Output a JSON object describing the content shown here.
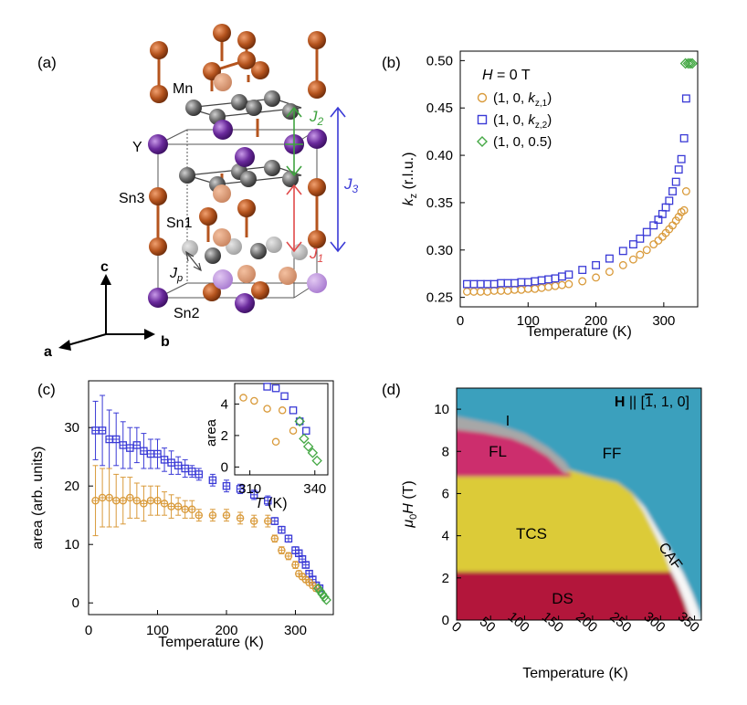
{
  "panels": {
    "a": {
      "label": "(a)",
      "atoms": {
        "mn": "Mn",
        "y": "Y",
        "sn3": "Sn3",
        "sn1": "Sn1",
        "sn2": "Sn2"
      },
      "couplings": {
        "j2": "J",
        "j2_sub": "2",
        "j1": "J",
        "j1_sub": "1",
        "j3": "J",
        "j3_sub": "3",
        "jp": "J",
        "jp_sub": "p"
      },
      "axes": {
        "a": "a",
        "b": "b",
        "c": "c"
      },
      "colors": {
        "mn": "#b5541e",
        "y": "#6a2a9c",
        "sn": "#6b6b6b",
        "j1": "#e04a4a",
        "j2": "#3fa33f",
        "j3": "#3a3ad6"
      }
    },
    "b": {
      "label": "(b)",
      "legend_title": "H = 0 T",
      "legend": [
        "(1, 0, kz,1)",
        "(1, 0, kz,2)",
        "(1, 0, 0.5)"
      ]
    },
    "c": {
      "label": "(c)"
    },
    "d": {
      "label": "(d)",
      "field_dir": "H || [1̄, 1, 0]",
      "regions": {
        "I": "I",
        "FL": "FL",
        "FF": "FF",
        "TCS": "TCS",
        "CAF": "CAF",
        "DS": "DS"
      },
      "colors": {
        "FF": "#3aa0bd",
        "I": "#a7a7a7",
        "FL": "#cc2e6d",
        "TCS": "#dccb38",
        "DS": "#b3173b",
        "CAF": "#ffffff"
      }
    }
  },
  "chart_data": [
    {
      "panel": "b",
      "type": "scatter",
      "xlabel": "Temperature (K)",
      "ylabel": "kz (r.l.u.)",
      "xlim": [
        0,
        350
      ],
      "ylim": [
        0.24,
        0.51
      ],
      "xticks": [
        "0",
        "100",
        "200",
        "300"
      ],
      "yticks": [
        "0.25",
        "0.30",
        "0.35",
        "0.40",
        "0.45",
        "0.50"
      ],
      "series": [
        {
          "name": "(1, 0, kz,1)",
          "color": "#d99a3a",
          "marker": "circle",
          "x": [
            10,
            20,
            30,
            40,
            50,
            60,
            70,
            80,
            90,
            100,
            110,
            120,
            130,
            140,
            150,
            160,
            180,
            200,
            220,
            240,
            255,
            265,
            275,
            285,
            292,
            298,
            303,
            308,
            313,
            318,
            322,
            326,
            330,
            333
          ],
          "y": [
            0.256,
            0.256,
            0.256,
            0.256,
            0.257,
            0.257,
            0.257,
            0.258,
            0.258,
            0.259,
            0.259,
            0.26,
            0.261,
            0.262,
            0.263,
            0.264,
            0.267,
            0.271,
            0.277,
            0.284,
            0.29,
            0.295,
            0.3,
            0.306,
            0.31,
            0.314,
            0.318,
            0.322,
            0.326,
            0.331,
            0.335,
            0.34,
            0.342,
            0.362
          ]
        },
        {
          "name": "(1, 0, kz,2)",
          "color": "#3a3ad6",
          "marker": "square",
          "x": [
            10,
            20,
            30,
            40,
            50,
            60,
            70,
            80,
            90,
            100,
            110,
            120,
            130,
            140,
            150,
            160,
            180,
            200,
            220,
            240,
            255,
            265,
            275,
            285,
            292,
            298,
            303,
            308,
            313,
            318,
            322,
            326,
            330
          ],
          "y": [
            0.264,
            0.264,
            0.264,
            0.264,
            0.264,
            0.265,
            0.265,
            0.265,
            0.266,
            0.266,
            0.267,
            0.268,
            0.269,
            0.27,
            0.272,
            0.274,
            0.279,
            0.284,
            0.291,
            0.299,
            0.306,
            0.312,
            0.319,
            0.326,
            0.332,
            0.338,
            0.345,
            0.352,
            0.362,
            0.372,
            0.385,
            0.396,
            0.418
          ]
        },
        {
          "name": "(1, 0, 0.5)",
          "color": "#45a845",
          "marker": "diamond",
          "x": [
            332,
            336,
            339,
            342
          ],
          "y": [
            0.497,
            0.497,
            0.497,
            0.497
          ]
        },
        {
          "name": "",
          "color": "#3a3ad6",
          "marker": "square",
          "x": [
            333
          ],
          "y": [
            0.46
          ]
        }
      ]
    },
    {
      "panel": "c",
      "type": "scatter",
      "xlabel": "Temperature (K)",
      "ylabel": "area (arb. units)",
      "xlim": [
        0,
        355
      ],
      "ylim": [
        -2,
        38
      ],
      "xticks": [
        "0",
        "100",
        "200",
        "300"
      ],
      "yticks": [
        "0",
        "10",
        "20",
        "30"
      ],
      "series": [
        {
          "name": "kz,2",
          "color": "#3a3ad6",
          "marker": "square",
          "x": [
            10,
            20,
            30,
            40,
            50,
            60,
            70,
            80,
            90,
            100,
            110,
            120,
            130,
            140,
            150,
            160,
            180,
            200,
            220,
            240,
            260,
            270,
            280,
            290,
            300,
            305,
            310,
            315,
            320,
            325,
            330,
            335
          ],
          "y": [
            29.5,
            29.5,
            28,
            28,
            27,
            26.5,
            27,
            26,
            25.5,
            25.5,
            24.5,
            24,
            23.5,
            23,
            22.5,
            22,
            21,
            20,
            19.5,
            18.5,
            17.5,
            14,
            12.5,
            11,
            9,
            8.5,
            7.5,
            6.5,
            5,
            4,
            3,
            2.5
          ],
          "err": [
            5,
            6,
            5,
            4.5,
            4,
            3.5,
            3,
            3,
            2.5,
            2.5,
            2,
            2,
            1.5,
            1.5,
            1,
            1,
            1,
            1,
            0.8,
            0.8,
            0.8,
            0.6,
            0.6,
            0.6,
            0.6,
            0.5,
            0.5,
            0.5,
            0.5,
            0.5,
            0.5,
            0.5
          ]
        },
        {
          "name": "kz,1",
          "color": "#d99a3a",
          "marker": "circle",
          "x": [
            10,
            20,
            30,
            40,
            50,
            60,
            70,
            80,
            90,
            100,
            110,
            120,
            130,
            140,
            150,
            160,
            180,
            200,
            220,
            240,
            260,
            270,
            280,
            290,
            300,
            305,
            310,
            315,
            320,
            325,
            330
          ],
          "y": [
            17.5,
            18,
            18,
            17.5,
            17.5,
            18,
            17.5,
            17,
            17.5,
            17.5,
            17,
            16.5,
            16.5,
            16,
            16,
            15,
            15,
            15,
            14.5,
            14,
            14,
            11,
            9,
            8,
            6.5,
            5,
            4.5,
            4,
            3.5,
            3,
            2.5
          ],
          "err": [
            6,
            5,
            5,
            4.5,
            4,
            3.5,
            3,
            3,
            2.5,
            2.5,
            2,
            2,
            1.5,
            1.5,
            1.5,
            1,
            1,
            1,
            1,
            1,
            1,
            0.6,
            0.6,
            0.6,
            0.6,
            0.5,
            0.5,
            0.5,
            0.5,
            0.5,
            0.5
          ]
        },
        {
          "name": "0.5",
          "color": "#45a845",
          "marker": "diamond",
          "x": [
            333,
            336,
            339,
            342,
            345
          ],
          "y": [
            2.5,
            2,
            1.5,
            1,
            0.5
          ]
        }
      ],
      "inset": {
        "xlabel": "T (K)",
        "ylabel": "area",
        "xlim": [
          303,
          346
        ],
        "ylim": [
          -0.5,
          5.3
        ],
        "xticks": [
          "310",
          "340"
        ],
        "yticks": [
          "0",
          "2",
          "4"
        ],
        "series": [
          {
            "color": "#d99a3a",
            "marker": "circle",
            "x": [
              307,
              312,
              318,
              322,
              325,
              330
            ],
            "y": [
              4.4,
              4.2,
              3.7,
              1.6,
              3.6,
              2.3
            ]
          },
          {
            "color": "#3a3ad6",
            "marker": "square",
            "x": [
              318,
              322,
              326,
              330,
              333,
              336
            ],
            "y": [
              5.1,
              5.0,
              4.5,
              3.6,
              2.9,
              2.3
            ]
          },
          {
            "color": "#45a845",
            "marker": "diamond",
            "x": [
              333,
              335,
              337,
              339,
              341
            ],
            "y": [
              2.9,
              1.8,
              1.3,
              0.9,
              0.4
            ]
          }
        ]
      }
    },
    {
      "panel": "d",
      "type": "heatmap",
      "xlabel": "Temperature (K)",
      "ylabel": "μ0H (T)",
      "xlim": [
        0,
        360
      ],
      "ylim": [
        0,
        11
      ],
      "xticks": [
        "0",
        "50",
        "100",
        "150",
        "200",
        "250",
        "300",
        "350"
      ],
      "yticks": [
        "0",
        "2",
        "4",
        "6",
        "8",
        "10"
      ]
    }
  ]
}
